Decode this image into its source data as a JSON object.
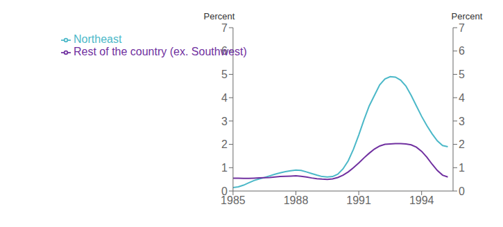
{
  "chart_data": {
    "type": "line",
    "y_label": "Percent",
    "y2_label": "Percent",
    "xlim": [
      1985,
      1995.5
    ],
    "xticks": [
      1985,
      1988,
      1991,
      1994
    ],
    "ylim": [
      0,
      7
    ],
    "yticks": [
      0,
      1,
      2,
      3,
      4,
      5,
      6,
      7
    ],
    "y2lim": [
      0,
      7
    ],
    "y2ticks": [
      0,
      1,
      2,
      3,
      4,
      5,
      6,
      7
    ],
    "grid": false,
    "legend": "upper left",
    "x": [
      1985.0,
      1985.25,
      1985.5,
      1985.75,
      1986.0,
      1986.25,
      1986.5,
      1986.75,
      1987.0,
      1987.25,
      1987.5,
      1987.75,
      1988.0,
      1988.25,
      1988.5,
      1988.75,
      1989.0,
      1989.25,
      1989.5,
      1989.75,
      1990.0,
      1990.25,
      1990.5,
      1990.75,
      1991.0,
      1991.25,
      1991.5,
      1991.75,
      1992.0,
      1992.25,
      1992.5,
      1992.75,
      1993.0,
      1993.25,
      1993.5,
      1993.75,
      1994.0,
      1994.25,
      1994.5,
      1994.75,
      1995.0,
      1995.25
    ],
    "series": [
      {
        "name": "Northeast",
        "color": "#4bb8c8",
        "values": [
          0.15,
          0.18,
          0.25,
          0.35,
          0.45,
          0.52,
          0.58,
          0.65,
          0.72,
          0.78,
          0.83,
          0.87,
          0.9,
          0.88,
          0.82,
          0.75,
          0.68,
          0.62,
          0.6,
          0.62,
          0.72,
          0.95,
          1.3,
          1.8,
          2.4,
          3.05,
          3.65,
          4.1,
          4.55,
          4.8,
          4.9,
          4.88,
          4.75,
          4.5,
          4.1,
          3.65,
          3.2,
          2.8,
          2.45,
          2.15,
          1.95,
          1.9
        ]
      },
      {
        "name": "Rest of the country (ex. Southwest)",
        "color": "#7030a0",
        "values": [
          0.55,
          0.55,
          0.54,
          0.54,
          0.55,
          0.56,
          0.57,
          0.58,
          0.6,
          0.62,
          0.63,
          0.64,
          0.65,
          0.63,
          0.6,
          0.56,
          0.53,
          0.51,
          0.5,
          0.52,
          0.58,
          0.68,
          0.82,
          1.0,
          1.2,
          1.42,
          1.62,
          1.8,
          1.93,
          2.0,
          2.02,
          2.03,
          2.03,
          2.02,
          1.98,
          1.88,
          1.7,
          1.45,
          1.15,
          0.88,
          0.68,
          0.6
        ]
      }
    ]
  }
}
